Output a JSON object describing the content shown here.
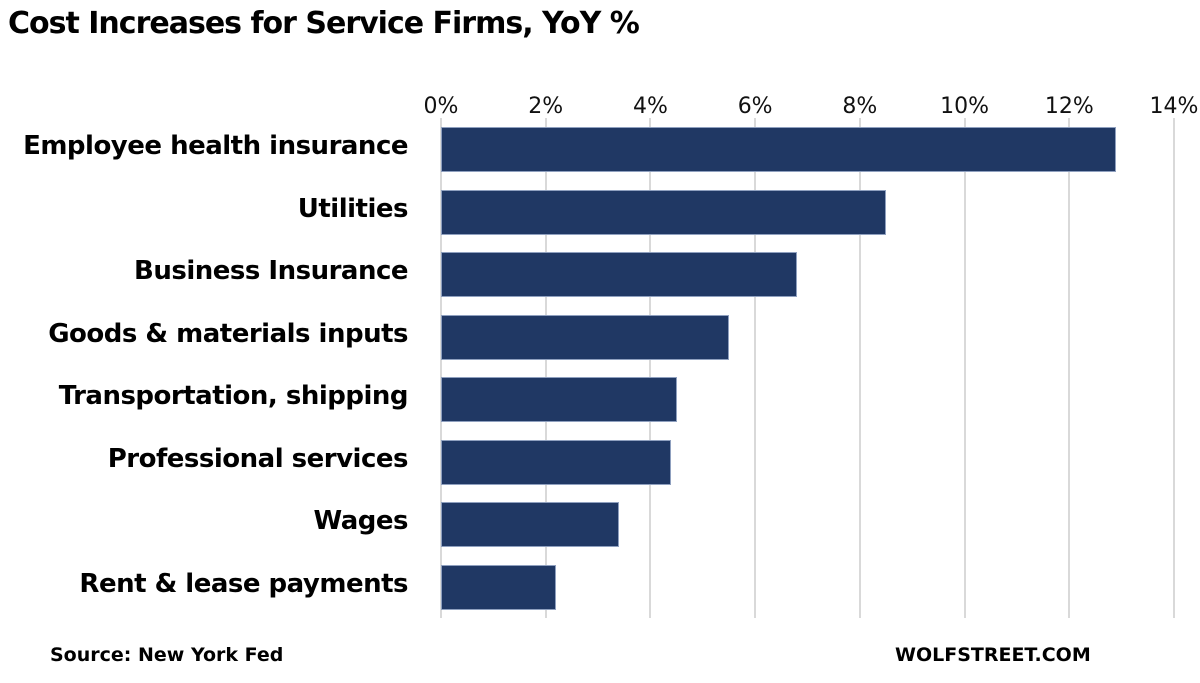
{
  "title": "Cost Increases for Service Firms, YoY %",
  "source": "Source: New York Fed",
  "brand": "WOLFSTREET.COM",
  "colors": {
    "bar": "#203864",
    "gridline": "#d9d9d9"
  },
  "axis": {
    "ticks": [
      "0%",
      "2%",
      "4%",
      "6%",
      "8%",
      "10%",
      "12%",
      "14%"
    ]
  },
  "chart_data": {
    "type": "bar",
    "orientation": "horizontal",
    "title": "Cost Increases for Service Firms, YoY %",
    "categories": [
      "Employee health insurance",
      "Utilities",
      "Business Insurance",
      "Goods & materials inputs",
      "Transportation, shipping",
      "Professional services",
      "Wages",
      "Rent & lease payments"
    ],
    "values": [
      12.9,
      8.5,
      6.8,
      5.5,
      4.5,
      4.4,
      3.4,
      2.2
    ],
    "xlabel": "",
    "ylabel": "",
    "xlim": [
      0,
      14
    ],
    "tick_labels": [
      "0%",
      "2%",
      "4%",
      "6%",
      "8%",
      "10%",
      "12%",
      "14%"
    ],
    "axis_position": "top",
    "grid": true,
    "legend": null,
    "annotations": [
      "Source: New York Fed",
      "WOLFSTREET.COM"
    ]
  }
}
